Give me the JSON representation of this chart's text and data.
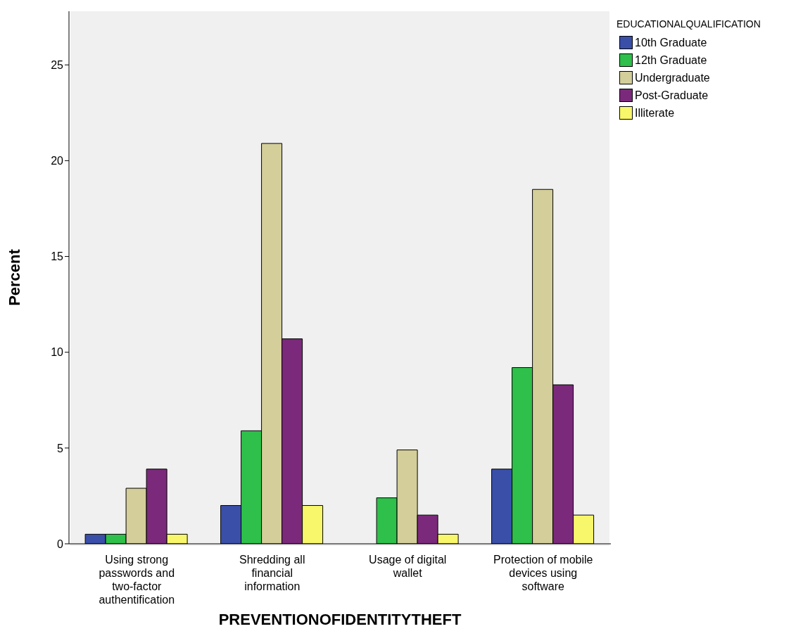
{
  "chart_data": {
    "type": "bar",
    "xlabel": "PREVENTIONOFIDENTITYTHEFT",
    "ylabel": "Percent",
    "legend_title": "EDUCATIONALQUALIFICATION",
    "legend": "top right",
    "grid": false,
    "categories": [
      "Using strong passwords and two-factor authentification",
      "Shredding all financial information",
      "Usage of digital wallet",
      "Protection of mobile devices using software"
    ],
    "series": [
      {
        "name": "10th Graduate",
        "color": "#3a4fa8",
        "values": [
          0.5,
          2.0,
          0,
          3.9
        ]
      },
      {
        "name": "12th Graduate",
        "color": "#2ec04a",
        "values": [
          0.5,
          5.9,
          2.4,
          9.2
        ]
      },
      {
        "name": "Undergraduate",
        "color": "#d3ce9a",
        "values": [
          2.9,
          20.9,
          4.9,
          18.5
        ]
      },
      {
        "name": "Post-Graduate",
        "color": "#7b2a7b",
        "values": [
          3.9,
          10.7,
          1.5,
          8.3
        ]
      },
      {
        "name": "Illiterate",
        "color": "#f8f66a",
        "values": [
          0.5,
          2.0,
          0.5,
          1.5
        ]
      }
    ],
    "ylim": [
      0,
      27.8
    ],
    "yticks": [
      0,
      5,
      10,
      15,
      20,
      25
    ]
  }
}
